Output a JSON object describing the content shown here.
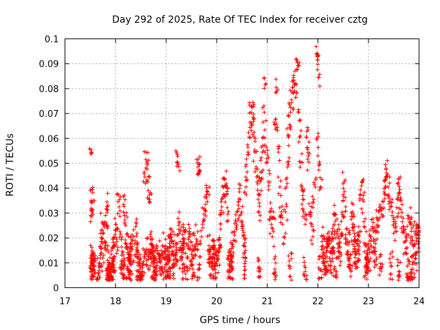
{
  "chart_data": {
    "type": "scatter",
    "title": "Day 292 of 2025, Rate Of TEC Index for receiver cztg",
    "xlabel": "GPS time / hours",
    "ylabel": "ROTI / TECUs",
    "xlim": [
      17,
      24
    ],
    "ylim": [
      0,
      0.1
    ],
    "xticks": [
      17,
      18,
      19,
      20,
      21,
      22,
      23,
      24
    ],
    "yticks": [
      0,
      0.01,
      0.02,
      0.03,
      0.04,
      0.05,
      0.06,
      0.07,
      0.08,
      0.09,
      0.1
    ],
    "xtick_labels": [
      "17",
      "18",
      "19",
      "20",
      "21",
      "22",
      "23",
      "24"
    ],
    "ytick_labels": [
      "0",
      "0.01",
      "0.02",
      "0.03",
      "0.04",
      "0.05",
      "0.06",
      "0.07",
      "0.08",
      "0.09",
      "0.1"
    ],
    "grid": true,
    "marker": "+",
    "color": "#ff0000",
    "series": [
      {
        "name": "ROTI",
        "points": [
          [
            17.52,
            0.0545
          ],
          [
            17.52,
            0.0395
          ],
          [
            17.53,
            0.031
          ],
          [
            17.54,
            0.0305
          ],
          [
            17.55,
            0.0315
          ],
          [
            17.52,
            0.012
          ],
          [
            17.54,
            0.009
          ],
          [
            17.55,
            0.007
          ],
          [
            17.57,
            0.0105
          ],
          [
            17.58,
            0.0085
          ],
          [
            17.66,
            0.006
          ],
          [
            17.7,
            0.012
          ],
          [
            17.72,
            0.0185
          ],
          [
            17.74,
            0.026
          ],
          [
            17.76,
            0.022
          ],
          [
            17.78,
            0.016
          ],
          [
            17.8,
            0.029
          ],
          [
            17.82,
            0.025
          ],
          [
            17.84,
            0.011
          ],
          [
            17.86,
            0.0075
          ],
          [
            17.88,
            0.0045
          ],
          [
            17.9,
            0.0065
          ],
          [
            17.92,
            0.0035
          ],
          [
            17.94,
            0.0095
          ],
          [
            17.83,
            0.0345
          ],
          [
            17.95,
            0.0165
          ],
          [
            17.97,
            0.0125
          ],
          [
            18.0,
            0.0255
          ],
          [
            18.02,
            0.0195
          ],
          [
            18.05,
            0.0345
          ],
          [
            18.07,
            0.0325
          ],
          [
            18.1,
            0.0215
          ],
          [
            18.12,
            0.0105
          ],
          [
            18.14,
            0.0055
          ],
          [
            18.16,
            0.0335
          ],
          [
            18.18,
            0.029
          ],
          [
            18.2,
            0.025
          ],
          [
            18.22,
            0.0175
          ],
          [
            18.24,
            0.0085
          ],
          [
            18.26,
            0.0135
          ],
          [
            18.28,
            0.0065
          ],
          [
            18.3,
            0.0095
          ],
          [
            18.33,
            0.0155
          ],
          [
            18.36,
            0.0205
          ],
          [
            18.4,
            0.0245
          ],
          [
            18.42,
            0.018
          ],
          [
            18.45,
            0.0125
          ],
          [
            18.48,
            0.0075
          ],
          [
            18.5,
            0.0055
          ],
          [
            18.55,
            0.0105
          ],
          [
            18.58,
            0.0445
          ],
          [
            18.6,
            0.0515
          ],
          [
            18.62,
            0.0505
          ],
          [
            18.64,
            0.0425
          ],
          [
            18.66,
            0.0355
          ],
          [
            18.68,
            0.0345
          ],
          [
            18.6,
            0.0145
          ],
          [
            18.65,
            0.0125
          ],
          [
            18.7,
            0.0175
          ],
          [
            18.72,
            0.0155
          ],
          [
            18.75,
            0.0095
          ],
          [
            18.78,
            0.0065
          ],
          [
            18.8,
            0.0115
          ],
          [
            18.84,
            0.0135
          ],
          [
            18.88,
            0.0105
          ],
          [
            18.92,
            0.0085
          ],
          [
            18.96,
            0.0165
          ],
          [
            19.0,
            0.0125
          ],
          [
            19.02,
            0.0045
          ],
          [
            19.05,
            0.0105
          ],
          [
            19.08,
            0.0165
          ],
          [
            19.1,
            0.0215
          ],
          [
            19.12,
            0.0185
          ],
          [
            19.15,
            0.0095
          ],
          [
            19.18,
            0.0135
          ],
          [
            19.2,
            0.0155
          ],
          [
            19.22,
            0.0535
          ],
          [
            19.24,
            0.0495
          ],
          [
            19.26,
            0.0265
          ],
          [
            19.28,
            0.0225
          ],
          [
            19.3,
            0.0125
          ],
          [
            19.33,
            0.0155
          ],
          [
            19.36,
            0.0195
          ],
          [
            19.4,
            0.0085
          ],
          [
            19.43,
            0.0175
          ],
          [
            19.46,
            0.0225
          ],
          [
            19.5,
            0.0135
          ],
          [
            19.53,
            0.0075
          ],
          [
            19.56,
            0.0165
          ],
          [
            19.6,
            0.0195
          ],
          [
            19.63,
            0.0485
          ],
          [
            19.65,
            0.0495
          ],
          [
            19.67,
            0.0465
          ],
          [
            19.7,
            0.0205
          ],
          [
            19.72,
            0.0255
          ],
          [
            19.75,
            0.0295
          ],
          [
            19.78,
            0.0335
          ],
          [
            19.8,
            0.0375
          ],
          [
            19.82,
            0.0385
          ],
          [
            19.85,
            0.0155
          ],
          [
            19.88,
            0.0125
          ],
          [
            19.9,
            0.0095
          ],
          [
            19.93,
            0.0135
          ],
          [
            19.96,
            0.0115
          ],
          [
            20.0,
            0.0105
          ],
          [
            20.03,
            0.0145
          ],
          [
            20.06,
            0.0195
          ],
          [
            20.08,
            0.0295
          ],
          [
            20.1,
            0.0325
          ],
          [
            20.12,
            0.0365
          ],
          [
            20.14,
            0.0405
          ],
          [
            20.16,
            0.0435
          ],
          [
            20.18,
            0.0405
          ],
          [
            20.2,
            0.0375
          ],
          [
            20.22,
            0.0295
          ],
          [
            20.25,
            0.0095
          ],
          [
            20.28,
            0.0125
          ],
          [
            20.3,
            0.0085
          ],
          [
            20.32,
            0.0165
          ],
          [
            20.35,
            0.0225
          ],
          [
            20.38,
            0.0265
          ],
          [
            20.4,
            0.0305
          ],
          [
            20.43,
            0.0345
          ],
          [
            20.45,
            0.0385
          ],
          [
            20.48,
            0.0295
          ],
          [
            20.5,
            0.0245
          ],
          [
            20.53,
            0.0205
          ],
          [
            20.56,
            0.0165
          ],
          [
            20.58,
            0.0405
          ],
          [
            20.6,
            0.0465
          ],
          [
            20.62,
            0.0545
          ],
          [
            20.64,
            0.0605
          ],
          [
            20.66,
            0.0665
          ],
          [
            20.68,
            0.0705
          ],
          [
            20.7,
            0.0725
          ],
          [
            20.72,
            0.0685
          ],
          [
            20.74,
            0.0625
          ],
          [
            20.76,
            0.0545
          ],
          [
            20.78,
            0.0485
          ],
          [
            20.8,
            0.0425
          ],
          [
            20.82,
            0.0355
          ],
          [
            20.84,
            0.0305
          ],
          [
            20.86,
            0.0425
          ],
          [
            20.88,
            0.0465
          ],
          [
            20.9,
            0.0545
          ],
          [
            20.92,
            0.0605
          ],
          [
            20.94,
            0.0705
          ],
          [
            20.96,
            0.0815
          ],
          [
            20.98,
            0.0565
          ],
          [
            21.0,
            0.0505
          ],
          [
            21.02,
            0.0425
          ],
          [
            21.05,
            0.0305
          ],
          [
            21.08,
            0.0255
          ],
          [
            21.1,
            0.0205
          ],
          [
            21.12,
            0.0305
          ],
          [
            21.15,
            0.0655
          ],
          [
            21.18,
            0.0805
          ],
          [
            21.2,
            0.0645
          ],
          [
            21.22,
            0.0545
          ],
          [
            21.25,
            0.0405
          ],
          [
            21.28,
            0.0305
          ],
          [
            21.3,
            0.0255
          ],
          [
            21.33,
            0.0205
          ],
          [
            21.36,
            0.0305
          ],
          [
            21.38,
            0.0405
          ],
          [
            21.4,
            0.0505
          ],
          [
            21.42,
            0.0605
          ],
          [
            21.44,
            0.0655
          ],
          [
            21.46,
            0.0705
          ],
          [
            21.48,
            0.0755
          ],
          [
            21.5,
            0.0805
          ],
          [
            21.52,
            0.0835
          ],
          [
            21.54,
            0.0815
          ],
          [
            21.56,
            0.0765
          ],
          [
            21.58,
            0.0915
          ],
          [
            21.6,
            0.0905
          ],
          [
            21.62,
            0.0705
          ],
          [
            21.64,
            0.0605
          ],
          [
            21.66,
            0.0505
          ],
          [
            21.68,
            0.0405
          ],
          [
            21.7,
            0.0355
          ],
          [
            21.72,
            0.0305
          ],
          [
            21.75,
            0.0255
          ],
          [
            21.78,
            0.0605
          ],
          [
            21.8,
            0.0555
          ],
          [
            21.82,
            0.0505
          ],
          [
            21.85,
            0.0305
          ],
          [
            21.88,
            0.0255
          ],
          [
            21.9,
            0.0205
          ],
          [
            21.92,
            0.0355
          ],
          [
            21.95,
            0.0405
          ],
          [
            21.98,
            0.0595
          ],
          [
            21.99,
            0.0935
          ],
          [
            22.0,
            0.0915
          ],
          [
            22.01,
            0.0845
          ],
          [
            22.03,
            0.0505
          ],
          [
            22.05,
            0.0405
          ],
          [
            22.08,
            0.0205
          ],
          [
            22.1,
            0.0155
          ],
          [
            22.12,
            0.0105
          ],
          [
            22.15,
            0.0085
          ],
          [
            22.18,
            0.0125
          ],
          [
            22.2,
            0.0165
          ],
          [
            22.22,
            0.0205
          ],
          [
            22.25,
            0.0145
          ],
          [
            22.28,
            0.0105
          ],
          [
            22.3,
            0.0195
          ],
          [
            22.32,
            0.0255
          ],
          [
            22.35,
            0.0295
          ],
          [
            22.38,
            0.0225
          ],
          [
            22.4,
            0.0175
          ],
          [
            22.43,
            0.0125
          ],
          [
            22.46,
            0.0205
          ],
          [
            22.48,
            0.0295
          ],
          [
            22.5,
            0.0375
          ],
          [
            22.52,
            0.0425
          ],
          [
            22.55,
            0.0325
          ],
          [
            22.58,
            0.0185
          ],
          [
            22.6,
            0.0135
          ],
          [
            22.63,
            0.0215
          ],
          [
            22.66,
            0.0275
          ],
          [
            22.68,
            0.0305
          ],
          [
            22.7,
            0.0255
          ],
          [
            22.72,
            0.0185
          ],
          [
            22.75,
            0.0135
          ],
          [
            22.78,
            0.0105
          ],
          [
            22.8,
            0.0155
          ],
          [
            22.82,
            0.0225
          ],
          [
            22.85,
            0.0375
          ],
          [
            22.87,
            0.0425
          ],
          [
            22.89,
            0.0355
          ],
          [
            22.91,
            0.0265
          ],
          [
            22.94,
            0.0175
          ],
          [
            22.97,
            0.0125
          ],
          [
            23.0,
            0.0105
          ],
          [
            23.02,
            0.0155
          ],
          [
            23.05,
            0.0205
          ],
          [
            23.08,
            0.0245
          ],
          [
            23.1,
            0.0185
          ],
          [
            23.13,
            0.0135
          ],
          [
            23.16,
            0.0225
          ],
          [
            23.18,
            0.0275
          ],
          [
            23.2,
            0.0305
          ],
          [
            23.23,
            0.0325
          ],
          [
            23.26,
            0.0295
          ],
          [
            23.29,
            0.0345
          ],
          [
            23.31,
            0.0385
          ],
          [
            23.33,
            0.0435
          ],
          [
            23.35,
            0.0475
          ],
          [
            23.37,
            0.0445
          ],
          [
            23.39,
            0.0405
          ],
          [
            23.41,
            0.0365
          ],
          [
            23.44,
            0.0325
          ],
          [
            23.47,
            0.0305
          ],
          [
            23.5,
            0.0265
          ],
          [
            23.53,
            0.0225
          ],
          [
            23.56,
            0.0285
          ],
          [
            23.58,
            0.0355
          ],
          [
            23.6,
            0.0435
          ],
          [
            23.62,
            0.0395
          ],
          [
            23.64,
            0.0315
          ],
          [
            23.67,
            0.0265
          ],
          [
            23.7,
            0.0225
          ],
          [
            23.73,
            0.0185
          ],
          [
            23.76,
            0.0215
          ],
          [
            23.8,
            0.0285
          ],
          [
            23.83,
            0.0255
          ],
          [
            23.86,
            0.0205
          ],
          [
            23.89,
            0.0165
          ],
          [
            23.92,
            0.0225
          ],
          [
            23.95,
            0.0255
          ],
          [
            23.97,
            0.0215
          ],
          [
            23.99,
            0.0185
          ],
          [
            23.78,
            0.0055
          ],
          [
            23.82,
            0.0045
          ],
          [
            23.88,
            0.0075
          ],
          [
            23.94,
            0.0095
          ],
          [
            23.6,
            0.0065
          ],
          [
            23.45,
            0.0085
          ],
          [
            23.25,
            0.0075
          ],
          [
            22.95,
            0.0065
          ],
          [
            22.65,
            0.0075
          ],
          [
            22.35,
            0.0065
          ],
          [
            22.05,
            0.0075
          ],
          [
            21.75,
            0.0065
          ],
          [
            21.45,
            0.0085
          ],
          [
            21.15,
            0.0075
          ],
          [
            20.85,
            0.0065
          ],
          [
            20.55,
            0.0085
          ],
          [
            20.25,
            0.0075
          ],
          [
            19.95,
            0.0085
          ],
          [
            19.65,
            0.0075
          ],
          [
            19.35,
            0.0095
          ],
          [
            19.05,
            0.0075
          ],
          [
            18.75,
            0.0085
          ],
          [
            18.45,
            0.0065
          ],
          [
            18.15,
            0.0075
          ],
          [
            17.85,
            0.0055
          ]
        ]
      }
    ]
  }
}
